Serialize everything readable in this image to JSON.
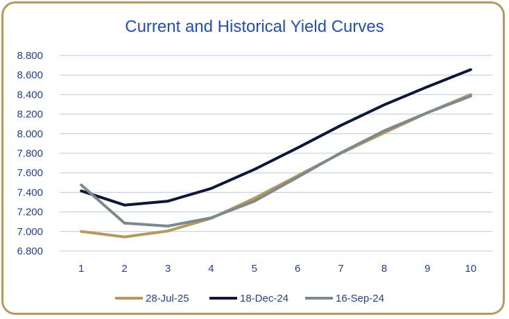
{
  "chart_data": {
    "type": "line",
    "title": "Current and Historical Yield Curves",
    "xlabel": "",
    "ylabel": "",
    "x": [
      1,
      2,
      3,
      4,
      5,
      6,
      7,
      8,
      9,
      10
    ],
    "ylim": [
      6.8,
      8.8
    ],
    "y_ticks": [
      "6.800",
      "7.000",
      "7.200",
      "7.400",
      "7.600",
      "7.800",
      "8.000",
      "8.200",
      "8.400",
      "8.600",
      "8.800"
    ],
    "grid": true,
    "legend_position": "bottom",
    "series": [
      {
        "name": "28-Jul-25",
        "color": "#b8995a",
        "values": [
          7.0,
          6.945,
          7.005,
          7.135,
          7.34,
          7.57,
          7.8,
          8.01,
          8.215,
          8.4
        ]
      },
      {
        "name": "18-Dec-24",
        "color": "#0d1738",
        "values": [
          7.415,
          7.27,
          7.31,
          7.44,
          7.635,
          7.855,
          8.085,
          8.295,
          8.48,
          8.655
        ]
      },
      {
        "name": "16-Sep-24",
        "color": "#7b8a8a",
        "values": [
          7.475,
          7.085,
          7.055,
          7.14,
          7.31,
          7.555,
          7.805,
          8.03,
          8.215,
          8.385
        ]
      }
    ]
  }
}
